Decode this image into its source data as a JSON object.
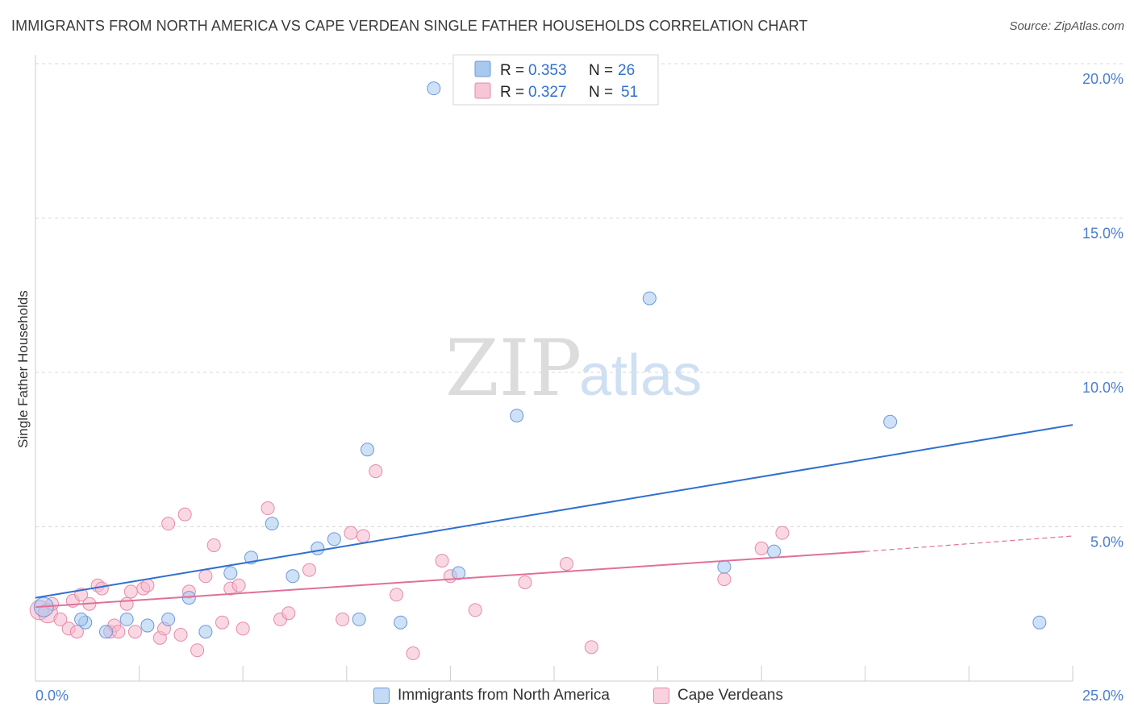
{
  "header": {
    "title": "IMMIGRANTS FROM NORTH AMERICA VS CAPE VERDEAN SINGLE FATHER HOUSEHOLDS CORRELATION CHART",
    "source": "Source: ZipAtlas.com"
  },
  "watermark": {
    "zip": "ZIP",
    "atlas": "atlas"
  },
  "colors": {
    "blue_fill": "#a8c8f0",
    "blue_stroke": "#6a9ad8",
    "blue_line": "#2f6fd0",
    "pink_fill": "#f6b8cc",
    "pink_stroke": "#e58aa8",
    "pink_line": "#e0709a",
    "grid": "#d8d8d8",
    "axis_text": "#4a7fd0"
  },
  "legend": {
    "blue": {
      "r_label": "R =",
      "r_value": "0.353",
      "n_label": "N =",
      "n_value": "26"
    },
    "pink": {
      "r_label": "R =",
      "r_value": "0.327",
      "n_label": "N =",
      "n_value": "51"
    }
  },
  "chart_data": {
    "type": "scatter",
    "title": "IMMIGRANTS FROM NORTH AMERICA VS CAPE VERDEAN SINGLE FATHER HOUSEHOLDS CORRELATION CHART",
    "xlabel": "",
    "ylabel": "Single Father Households",
    "xlim": [
      0,
      25
    ],
    "ylim": [
      0,
      20.5
    ],
    "x_tick_labels": [
      "0.0%",
      "25.0%"
    ],
    "y_ticks": [
      5,
      10,
      15,
      20
    ],
    "y_tick_labels": [
      "5.0%",
      "10.0%",
      "15.0%",
      "20.0%"
    ],
    "series": [
      {
        "name": "Immigrants from North America",
        "color": "blue",
        "r": 0.353,
        "n": 26,
        "trend": {
          "x": [
            0,
            25
          ],
          "y": [
            2.7,
            8.3
          ]
        },
        "points": [
          [
            0.2,
            2.4
          ],
          [
            1.2,
            1.9
          ],
          [
            1.7,
            1.6
          ],
          [
            2.2,
            2.0
          ],
          [
            2.7,
            1.8
          ],
          [
            3.2,
            2.0
          ],
          [
            3.7,
            2.7
          ],
          [
            4.1,
            1.6
          ],
          [
            4.7,
            3.5
          ],
          [
            5.2,
            4.0
          ],
          [
            5.7,
            5.1
          ],
          [
            6.2,
            3.4
          ],
          [
            6.8,
            4.3
          ],
          [
            7.2,
            4.6
          ],
          [
            7.8,
            2.0
          ],
          [
            8.0,
            7.5
          ],
          [
            8.8,
            1.9
          ],
          [
            9.6,
            19.2
          ],
          [
            10.2,
            3.5
          ],
          [
            11.6,
            8.6
          ],
          [
            14.8,
            12.4
          ],
          [
            16.6,
            3.7
          ],
          [
            17.8,
            4.2
          ],
          [
            20.6,
            8.4
          ],
          [
            24.2,
            1.9
          ],
          [
            1.1,
            2.0
          ]
        ]
      },
      {
        "name": "Cape Verdeans",
        "color": "pink",
        "r": 0.327,
        "n": 51,
        "trend": {
          "x": [
            0,
            20
          ],
          "y": [
            2.4,
            4.2
          ]
        },
        "trend_dashed": {
          "x": [
            20,
            25
          ],
          "y": [
            4.2,
            4.7
          ]
        },
        "points": [
          [
            0.1,
            2.3
          ],
          [
            0.3,
            2.2
          ],
          [
            0.6,
            2.0
          ],
          [
            0.8,
            1.7
          ],
          [
            0.9,
            2.6
          ],
          [
            1.0,
            1.6
          ],
          [
            1.1,
            2.8
          ],
          [
            1.3,
            2.5
          ],
          [
            1.5,
            3.1
          ],
          [
            1.6,
            3.0
          ],
          [
            1.8,
            1.6
          ],
          [
            1.9,
            1.8
          ],
          [
            2.0,
            1.6
          ],
          [
            2.2,
            2.5
          ],
          [
            2.3,
            2.9
          ],
          [
            2.4,
            1.6
          ],
          [
            2.6,
            3.0
          ],
          [
            2.7,
            3.1
          ],
          [
            3.0,
            1.4
          ],
          [
            3.1,
            1.7
          ],
          [
            3.2,
            5.1
          ],
          [
            3.5,
            1.5
          ],
          [
            3.6,
            5.4
          ],
          [
            3.7,
            2.9
          ],
          [
            3.9,
            1.0
          ],
          [
            4.1,
            3.4
          ],
          [
            4.3,
            4.4
          ],
          [
            4.5,
            1.9
          ],
          [
            4.7,
            3.0
          ],
          [
            4.9,
            3.1
          ],
          [
            5.0,
            1.7
          ],
          [
            5.6,
            5.6
          ],
          [
            5.9,
            2.0
          ],
          [
            6.1,
            2.2
          ],
          [
            6.6,
            3.6
          ],
          [
            7.4,
            2.0
          ],
          [
            7.6,
            4.8
          ],
          [
            7.9,
            4.7
          ],
          [
            8.2,
            6.8
          ],
          [
            8.7,
            2.8
          ],
          [
            9.1,
            0.9
          ],
          [
            9.8,
            3.9
          ],
          [
            10.0,
            3.4
          ],
          [
            10.6,
            2.3
          ],
          [
            11.8,
            3.2
          ],
          [
            12.8,
            3.8
          ],
          [
            13.4,
            1.1
          ],
          [
            16.6,
            3.3
          ],
          [
            17.5,
            4.3
          ],
          [
            18.0,
            4.8
          ],
          [
            0.4,
            2.5
          ]
        ]
      }
    ]
  }
}
